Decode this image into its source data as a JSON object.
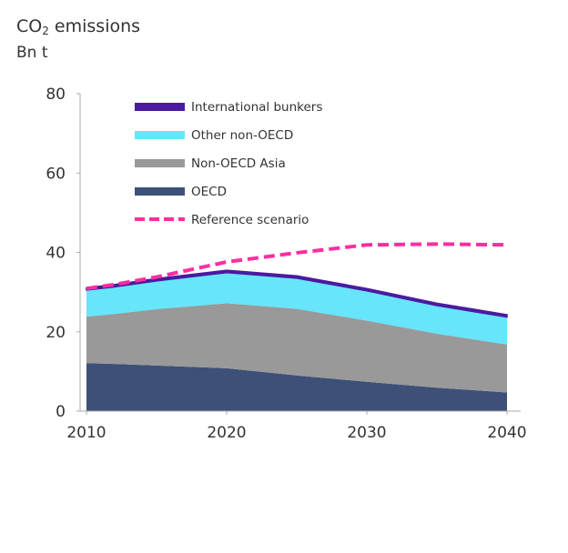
{
  "chart_data": {
    "type": "area",
    "title": {
      "prefix": "CO",
      "subscript": "2",
      "suffix": " emissions"
    },
    "ylabel": "Bn t",
    "xlabel": "",
    "x": [
      2010,
      2012,
      2015,
      2020,
      2025,
      2030,
      2035,
      2040
    ],
    "xticks": [
      "2010",
      "2020",
      "2030",
      "2040"
    ],
    "yticks": [
      "0",
      "20",
      "40",
      "60",
      "80"
    ],
    "xlim": [
      2010,
      2040
    ],
    "ylim": [
      0,
      80
    ],
    "stacked": true,
    "grid": false,
    "legend_position": "top-left",
    "series": [
      {
        "name": "OECD",
        "color": "#3d5078",
        "values": [
          12.1,
          11.9,
          11.5,
          10.8,
          9.0,
          7.4,
          5.9,
          4.7
        ]
      },
      {
        "name": "Non-OECD Asia",
        "color": "#999999",
        "values": [
          11.7,
          12.6,
          14.2,
          16.4,
          16.8,
          15.4,
          13.6,
          12.1
        ]
      },
      {
        "name": "Other non-OECD",
        "color": "#66e5fb",
        "values": [
          6.7,
          6.8,
          7.1,
          7.7,
          7.7,
          7.5,
          7.1,
          6.9
        ]
      },
      {
        "name": "International bunkers",
        "color": "#4a1aa0",
        "values": [
          0.6,
          0.6,
          0.6,
          0.6,
          0.6,
          0.6,
          0.6,
          0.6
        ]
      }
    ],
    "reference": {
      "name": "Reference scenario",
      "color": "#ff2da0",
      "style": "dashed",
      "values": [
        30.9,
        31.9,
        33.8,
        37.6,
        39.9,
        41.9,
        42.1,
        41.9
      ]
    },
    "legend_order": [
      "International bunkers",
      "Other non-OECD",
      "Non-OECD Asia",
      "OECD",
      "Reference scenario"
    ]
  }
}
